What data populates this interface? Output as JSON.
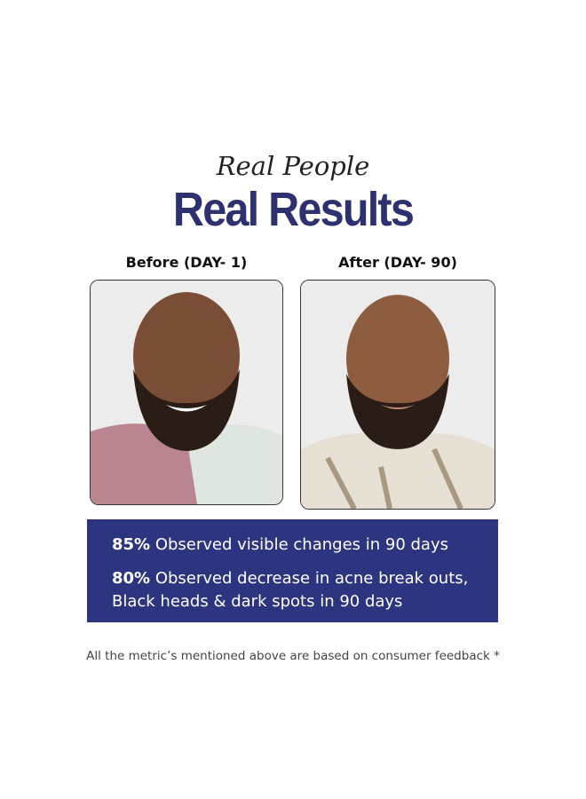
{
  "heading": {
    "subtitle": "Real People",
    "title": "Real Results"
  },
  "photos": [
    {
      "label": "Before (DAY- 1)"
    },
    {
      "label": "After (DAY- 90)"
    }
  ],
  "stats": [
    {
      "percent": "85%",
      "text": "Observed visible changes in 90 days"
    },
    {
      "percent": "80%",
      "text": "Observed decrease in acne break outs, Black heads & dark spots in 90 days"
    }
  ],
  "footnote": "All the metric’s mentioned above are based on consumer feedback *"
}
